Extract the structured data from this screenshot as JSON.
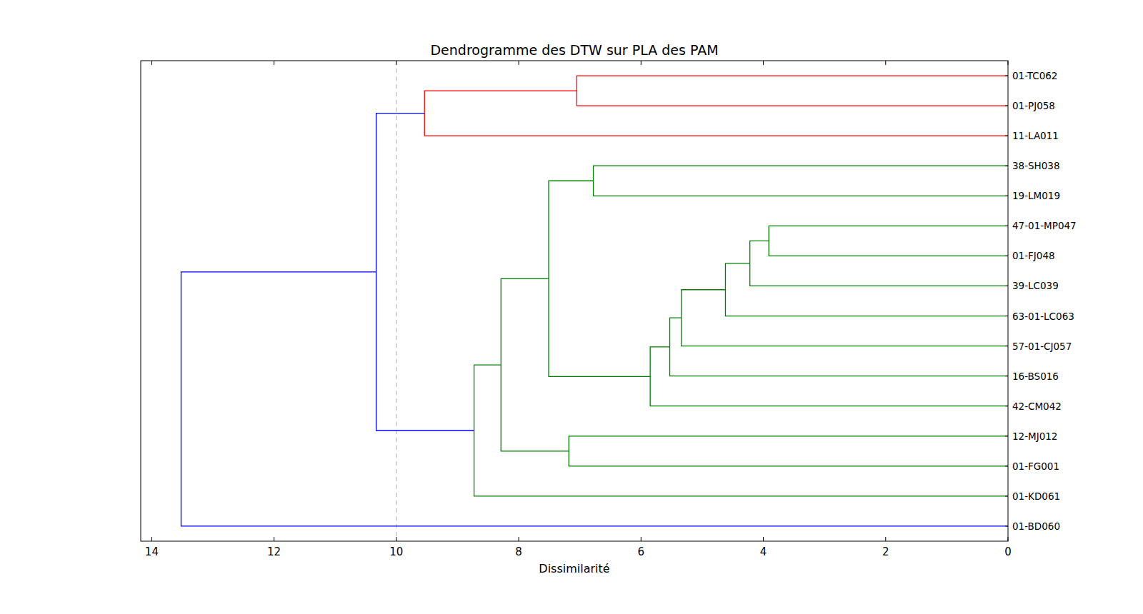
{
  "chart_data": {
    "type": "dendrogram",
    "orientation": "horizontal",
    "title": "Dendrogramme des DTW sur PLA des PAM",
    "x_label": "Dissimilarité",
    "leaves": [
      "01-TC062",
      "01-PJ058",
      "11-LA011",
      "38-SH038",
      "19-LM019",
      "47-01-MP047",
      "01-FJ048",
      "39-LC039",
      "63-01-LC063",
      "57-01-CJ057",
      "16-BS016",
      "42-CM042",
      "12-MJ012",
      "01-FG001",
      "01-KD061",
      "01-BD060"
    ],
    "merges": [
      {
        "children": [
          0,
          1
        ],
        "height": 7.05,
        "color": "#ff0000"
      },
      {
        "children": [
          16,
          2
        ],
        "height": 9.54,
        "color": "#ff0000"
      },
      {
        "children": [
          3,
          4
        ],
        "height": 6.78,
        "color": "#008000"
      },
      {
        "children": [
          5,
          6
        ],
        "height": 3.91,
        "color": "#008000"
      },
      {
        "children": [
          19,
          7
        ],
        "height": 4.22,
        "color": "#008000"
      },
      {
        "children": [
          20,
          8
        ],
        "height": 4.62,
        "color": "#008000"
      },
      {
        "children": [
          21,
          9
        ],
        "height": 5.34,
        "color": "#008000"
      },
      {
        "children": [
          22,
          10
        ],
        "height": 5.53,
        "color": "#008000"
      },
      {
        "children": [
          23,
          11
        ],
        "height": 5.85,
        "color": "#008000"
      },
      {
        "children": [
          18,
          24
        ],
        "height": 7.51,
        "color": "#008000"
      },
      {
        "children": [
          12,
          13
        ],
        "height": 7.18,
        "color": "#008000"
      },
      {
        "children": [
          25,
          26
        ],
        "height": 8.29,
        "color": "#008000"
      },
      {
        "children": [
          27,
          14
        ],
        "height": 8.73,
        "color": "#008000"
      },
      {
        "children": [
          17,
          28
        ],
        "height": 10.33,
        "color": "#0000ff"
      },
      {
        "children": [
          29,
          15
        ],
        "height": 13.52,
        "color": "#0000ff"
      }
    ],
    "threshold": 10,
    "xlim": [
      14.18,
      0
    ],
    "xticks": [
      14,
      12,
      10,
      8,
      6,
      4,
      2,
      0
    ]
  }
}
